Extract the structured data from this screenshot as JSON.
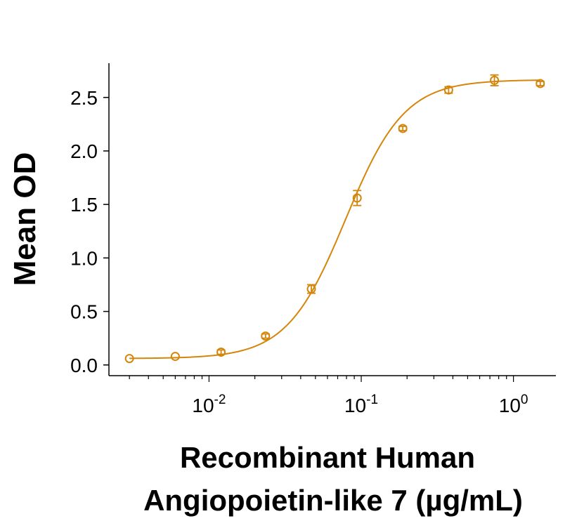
{
  "chart_data": {
    "type": "scatter",
    "xlabel_lines": [
      "Recombinant Human",
      "Angiopoietin-like 7 (µg/mL)"
    ],
    "ylabel": "Mean OD",
    "x_scale": "log",
    "xlim": [
      0.0022,
      1.9
    ],
    "ylim": [
      -0.1,
      2.82
    ],
    "y_ticks": [
      {
        "value": 0.0,
        "label": "0.0"
      },
      {
        "value": 0.5,
        "label": "0.5"
      },
      {
        "value": 1.0,
        "label": "1.0"
      },
      {
        "value": 1.5,
        "label": "1.5"
      },
      {
        "value": 2.0,
        "label": "2.0"
      },
      {
        "value": 2.5,
        "label": "2.5"
      }
    ],
    "x_major_ticks": [
      {
        "value": 0.01,
        "base": "10",
        "exp": "-2"
      },
      {
        "value": 0.1,
        "base": "10",
        "exp": "-1"
      },
      {
        "value": 1,
        "base": "10",
        "exp": "0"
      }
    ],
    "color": "#D4860B",
    "series": [
      {
        "x": [
          0.003,
          0.006,
          0.012,
          0.0235,
          0.047,
          0.094,
          0.1875,
          0.375,
          0.75,
          1.5
        ],
        "y": [
          0.06,
          0.08,
          0.12,
          0.27,
          0.71,
          1.56,
          2.21,
          2.57,
          2.66,
          2.63
        ],
        "error": [
          0.0,
          0.0,
          0.02,
          0.02,
          0.04,
          0.07,
          0.02,
          0.03,
          0.05,
          0.02
        ]
      }
    ],
    "fit": {
      "model": "4PL",
      "bottom": 0.06,
      "top": 2.665,
      "ec50": 0.079,
      "hill": 2.25
    }
  }
}
